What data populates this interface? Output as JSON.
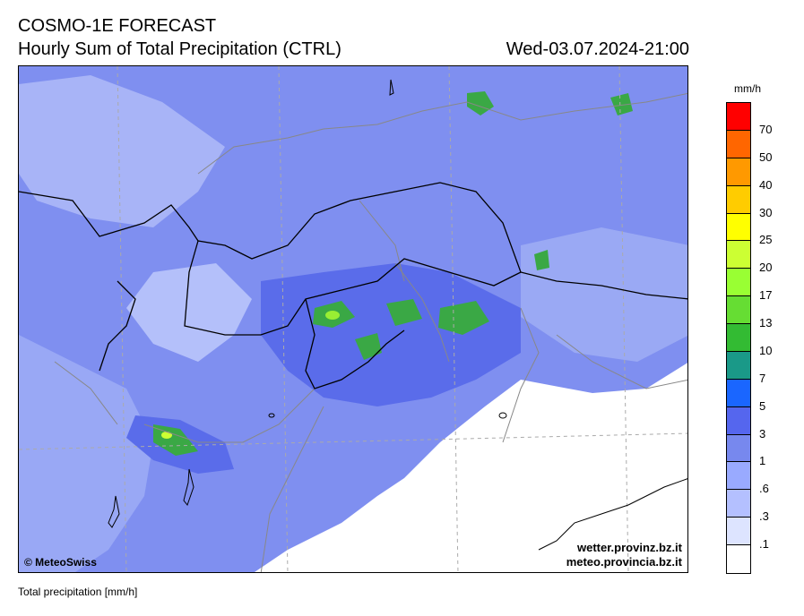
{
  "header": {
    "title": "COSMO-1E FORECAST",
    "subtitle": "Hourly Sum of Total Precipitation (CTRL)",
    "datetime": "Wed-03.07.2024-21:00"
  },
  "map": {
    "copyright": "© MeteoSwiss",
    "source_de": "wetter.provinz.bz.it",
    "source_it": "meteo.provincia.bz.it"
  },
  "footer": {
    "caption": "Total precipitation [mm/h]"
  },
  "legend": {
    "unit": "mm/h",
    "labels": [
      "70",
      "50",
      "40",
      "30",
      "25",
      "20",
      "17",
      "13",
      "10",
      "7",
      "5",
      "3",
      "1",
      ".6",
      ".3",
      ".1"
    ],
    "colors": [
      "#ff0000",
      "#ff6600",
      "#ff9900",
      "#ffcc00",
      "#ffff00",
      "#ccff33",
      "#99ff33",
      "#66dd33",
      "#33bb33",
      "#1a9988",
      "#1a66ff",
      "#5566ee",
      "#7788ee",
      "#99aaff",
      "#b4c0ff",
      "#dde4ff",
      "#ffffff"
    ]
  }
}
